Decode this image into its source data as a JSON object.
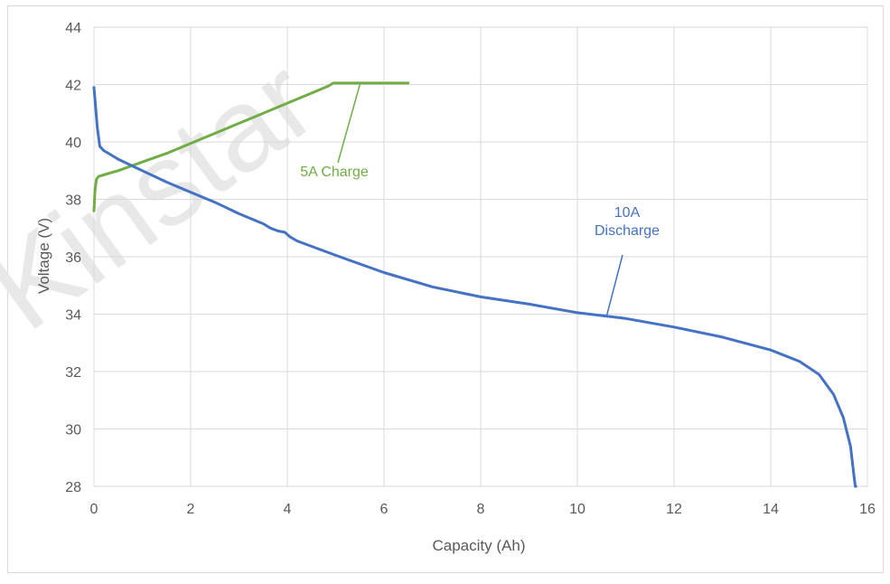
{
  "chart_data": {
    "type": "line",
    "xlabel": "Capacity (Ah)",
    "ylabel": "Voltage (V)",
    "xlim": [
      0,
      16
    ],
    "ylim": [
      28,
      44
    ],
    "xticks": [
      0,
      2,
      4,
      6,
      8,
      10,
      12,
      14,
      16
    ],
    "yticks": [
      28,
      30,
      32,
      34,
      36,
      38,
      40,
      42,
      44
    ],
    "grid": true,
    "watermark": "Kinstar",
    "colors": {
      "charge": "#70ad47",
      "discharge": "#4472c4"
    },
    "annotations": [
      {
        "series": "charge",
        "lines": [
          "5A Charge"
        ],
        "x": 5.5,
        "y": 42.0
      },
      {
        "series": "discharge",
        "lines": [
          "10A",
          "Discharge"
        ],
        "x": 10.6,
        "y": 33.9
      }
    ],
    "series": [
      {
        "key": "charge",
        "x": [
          0.0,
          0.02,
          0.05,
          0.1,
          0.2,
          0.5,
          1.0,
          1.5,
          2.0,
          2.5,
          3.0,
          3.5,
          4.0,
          4.5,
          4.85,
          4.95,
          5.5,
          6.0,
          6.5
        ],
        "y": [
          37.6,
          38.3,
          38.7,
          38.8,
          38.85,
          39.0,
          39.3,
          39.6,
          39.95,
          40.3,
          40.65,
          41.0,
          41.35,
          41.7,
          41.95,
          42.05,
          42.05,
          42.05,
          42.05
        ]
      },
      {
        "key": "discharge",
        "x": [
          0.0,
          0.03,
          0.07,
          0.12,
          0.2,
          0.5,
          1.0,
          1.5,
          2.0,
          2.5,
          3.0,
          3.5,
          3.65,
          3.8,
          3.95,
          4.05,
          4.2,
          5.0,
          6.0,
          7.0,
          8.0,
          9.0,
          10.0,
          11.0,
          12.0,
          13.0,
          14.0,
          14.6,
          15.0,
          15.3,
          15.5,
          15.65,
          15.72,
          15.75,
          15.76
        ],
        "y": [
          41.9,
          41.3,
          40.5,
          39.85,
          39.7,
          39.4,
          39.0,
          38.6,
          38.25,
          37.9,
          37.5,
          37.15,
          37.0,
          36.9,
          36.85,
          36.7,
          36.55,
          36.05,
          35.45,
          34.95,
          34.6,
          34.35,
          34.05,
          33.85,
          33.55,
          33.2,
          32.75,
          32.35,
          31.9,
          31.2,
          30.4,
          29.4,
          28.4,
          28.0,
          28.0
        ]
      }
    ]
  }
}
